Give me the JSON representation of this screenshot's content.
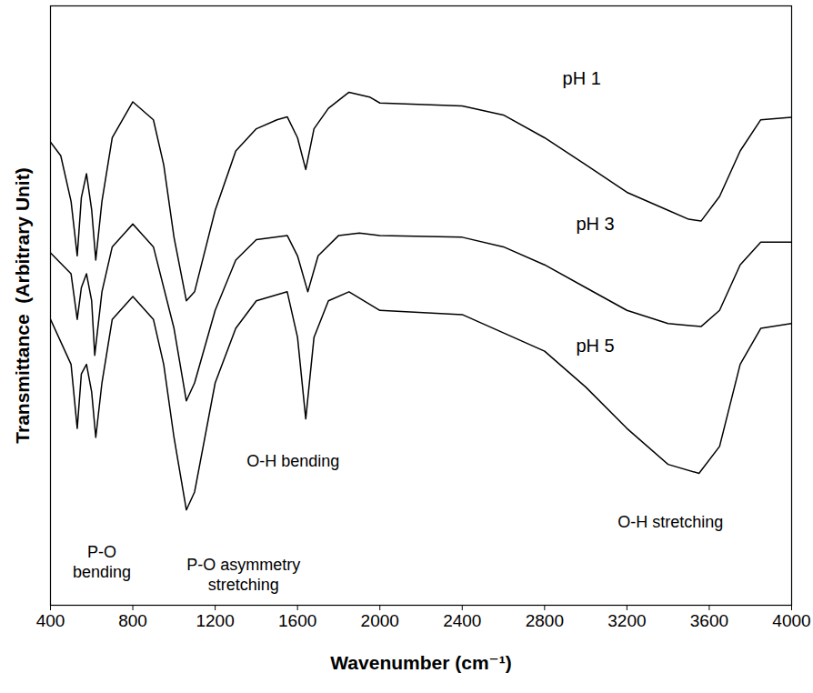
{
  "chart_data": {
    "type": "line",
    "x_label": "Wavenumber (cm⁻¹)",
    "y_label": "Transmittance  (Arbitrary Unit)",
    "xlim": [
      400,
      4000
    ],
    "xticks": [
      400,
      800,
      1200,
      1600,
      2000,
      2400,
      2800,
      3200,
      3600,
      4000
    ],
    "ylim": [
      0,
      100
    ],
    "yticks": [],
    "tick_labels": "x",
    "grid": false,
    "series": [
      {
        "name": "pH 1",
        "color": "#000000",
        "label_position": [
          2887,
          87.9
        ],
        "x": [
          400,
          450,
          500,
          530,
          550,
          575,
          600,
          620,
          650,
          700,
          800,
          900,
          950,
          1000,
          1060,
          1100,
          1200,
          1300,
          1400,
          1500,
          1550,
          1600,
          1640,
          1680,
          1750,
          1850,
          1950,
          2000,
          2400,
          2600,
          2800,
          3000,
          3200,
          3400,
          3500,
          3560,
          3650,
          3750,
          3850,
          4000
        ],
        "values": [
          77.3,
          75,
          67.4,
          58.3,
          68,
          72,
          66,
          57.6,
          67.4,
          78,
          84,
          81,
          73.5,
          61.4,
          50.8,
          52.3,
          65.9,
          75.8,
          79.5,
          81,
          81.5,
          78,
          72.7,
          79.5,
          82.9,
          85.6,
          84.8,
          83.8,
          83.3,
          81.8,
          78,
          73.5,
          68.9,
          65.9,
          64.4,
          64.1,
          68.2,
          75.8,
          81,
          81.4
        ]
      },
      {
        "name": "pH 3",
        "color": "#000000",
        "label_position": [
          2953,
          63.6
        ],
        "x": [
          400,
          500,
          530,
          550,
          575,
          600,
          615,
          650,
          700,
          800,
          900,
          1000,
          1060,
          1100,
          1200,
          1300,
          1400,
          1550,
          1600,
          1650,
          1700,
          1800,
          1900,
          2000,
          2400,
          2600,
          2800,
          3000,
          3200,
          3400,
          3560,
          3650,
          3750,
          3850,
          4000
        ],
        "values": [
          58.8,
          55.3,
          47.7,
          53,
          55.3,
          50.8,
          41.7,
          52.3,
          59.8,
          63.6,
          59.8,
          46.2,
          34.1,
          37.1,
          49.2,
          57.6,
          61,
          61.7,
          58.3,
          52.3,
          58.3,
          61.7,
          62.1,
          61.7,
          61.4,
          59.8,
          56.8,
          53,
          49.2,
          47,
          46.5,
          49.2,
          56.8,
          60.6,
          60.6
        ]
      },
      {
        "name": "pH 5",
        "color": "#000000",
        "label_position": [
          2953,
          43.2
        ],
        "x": [
          400,
          500,
          530,
          550,
          575,
          600,
          620,
          650,
          700,
          800,
          900,
          950,
          1000,
          1060,
          1100,
          1200,
          1300,
          1400,
          1550,
          1600,
          1640,
          1680,
          1750,
          1850,
          2000,
          2400,
          2800,
          3000,
          3200,
          3400,
          3550,
          3650,
          3750,
          3850,
          4000
        ],
        "values": [
          47.7,
          40.2,
          29.5,
          38.6,
          40.2,
          35.6,
          28,
          37.1,
          47.7,
          51.5,
          47.7,
          40.2,
          28,
          15.9,
          18.9,
          37.1,
          46.2,
          50.8,
          52.3,
          44.7,
          31.1,
          44.7,
          50.8,
          52.3,
          49.2,
          48.5,
          42.4,
          36.4,
          29.5,
          23.5,
          22,
          26.5,
          40.2,
          46.2,
          47
        ]
      }
    ],
    "annotations": [
      {
        "text": "P-O\nbending",
        "x": 650,
        "y": 7.4
      },
      {
        "text": "P-O asymmetry\nstretching",
        "x": 1338,
        "y": 5.3
      },
      {
        "text": "O-H bending",
        "x": 1578,
        "y": 24.2
      },
      {
        "text": "O-H stretching",
        "x": 3411,
        "y": 14.1
      }
    ]
  }
}
